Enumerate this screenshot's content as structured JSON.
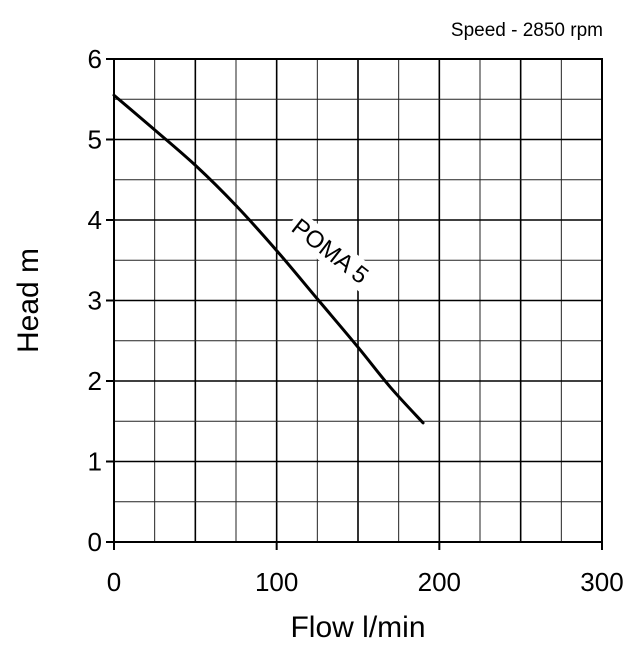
{
  "chart_data": {
    "type": "line",
    "annotation": "Speed - 2850 rpm",
    "xlabel": "Flow l/min",
    "ylabel": "Head m",
    "xlim": [
      0,
      300
    ],
    "ylim": [
      0,
      6
    ],
    "x_ticks": [
      "0",
      "100",
      "200",
      "300"
    ],
    "y_ticks": [
      "0",
      "1",
      "2",
      "3",
      "4",
      "5",
      "6"
    ],
    "grid": true,
    "series": [
      {
        "name": "POMA 5",
        "color": "#000000",
        "points": [
          [
            0,
            5.55
          ],
          [
            25,
            5.12
          ],
          [
            50,
            4.68
          ],
          [
            75,
            4.18
          ],
          [
            100,
            3.62
          ],
          [
            125,
            3.02
          ],
          [
            150,
            2.42
          ],
          [
            170,
            1.92
          ],
          [
            190,
            1.48
          ]
        ]
      }
    ]
  }
}
